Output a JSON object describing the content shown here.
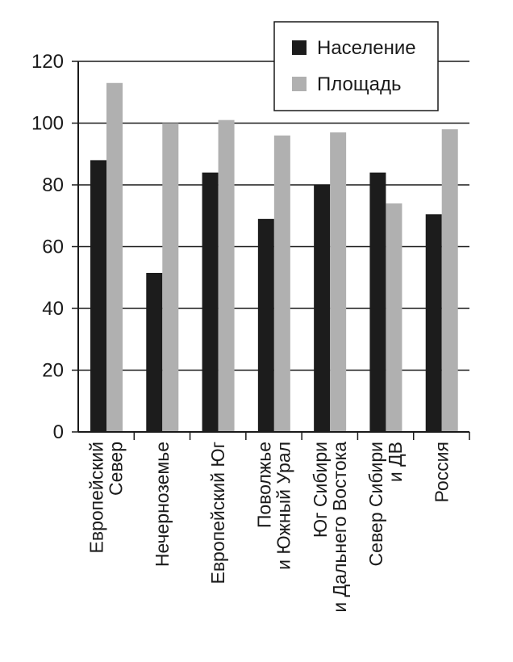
{
  "chart_data": {
    "type": "bar",
    "categories": [
      [
        "Европейский",
        "Север"
      ],
      [
        "Нечерноземье"
      ],
      [
        "Европейский Юг"
      ],
      [
        "Поволжье",
        "и Южный Урал"
      ],
      [
        "Юг Сибири",
        "и Дальнего Востока"
      ],
      [
        "Север Сибири",
        "и ДВ"
      ],
      [
        "Россия"
      ]
    ],
    "series": [
      {
        "name": "Население",
        "color": "#1c1c1c",
        "values": [
          88,
          51.5,
          84,
          69,
          80,
          84,
          70.5
        ]
      },
      {
        "name": "Площадь",
        "color": "#b0b0b0",
        "values": [
          113,
          100,
          101,
          96,
          97,
          74,
          98
        ]
      }
    ],
    "yticks": [
      "0",
      "20",
      "40",
      "60",
      "80",
      "100",
      "120"
    ],
    "ylim": [
      0,
      120
    ],
    "grid": true,
    "legend": "top-right"
  }
}
